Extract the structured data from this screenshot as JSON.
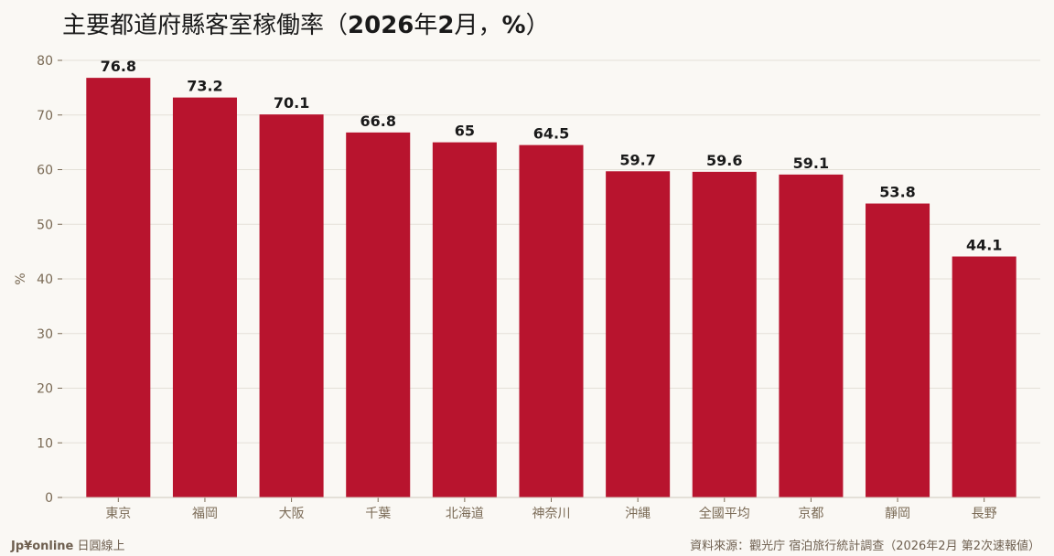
{
  "title": {
    "main": "主要都道府縣客室稼働率",
    "paren_open": "（",
    "year": "2026",
    "year_unit": "年",
    "month": "2",
    "month_unit": "月",
    "sep": "，",
    "pct": "%",
    "paren_close": "）"
  },
  "footer": {
    "brand": "Jp¥online",
    "brand_sub": " 日圓線上",
    "source": "資料來源：觀光庁 宿泊旅行統計調查（2026年2月 第2次速報値）"
  },
  "colors": {
    "bar": "#b8142e",
    "background": "#faf8f4",
    "grid": "#e4e0d8",
    "axis_text": "#7a6a55",
    "label_text": "#1a1a1a"
  },
  "chart_data": {
    "type": "bar",
    "categories": [
      "東京",
      "福岡",
      "大阪",
      "千葉",
      "北海道",
      "神奈川",
      "沖縄",
      "全國平均",
      "京都",
      "靜岡",
      "長野"
    ],
    "values": [
      76.8,
      73.2,
      70.1,
      66.8,
      65,
      64.5,
      59.7,
      59.6,
      59.1,
      53.8,
      44.1
    ],
    "value_labels": [
      "76.8",
      "73.2",
      "70.1",
      "66.8",
      "65",
      "64.5",
      "59.7",
      "59.6",
      "59.1",
      "53.8",
      "44.1"
    ],
    "ylabel": "%",
    "ylim": [
      0,
      80
    ],
    "yticks": [
      "0",
      "10",
      "20",
      "30",
      "40",
      "50",
      "60",
      "70",
      "80"
    ],
    "grid": true,
    "legend": "none"
  }
}
